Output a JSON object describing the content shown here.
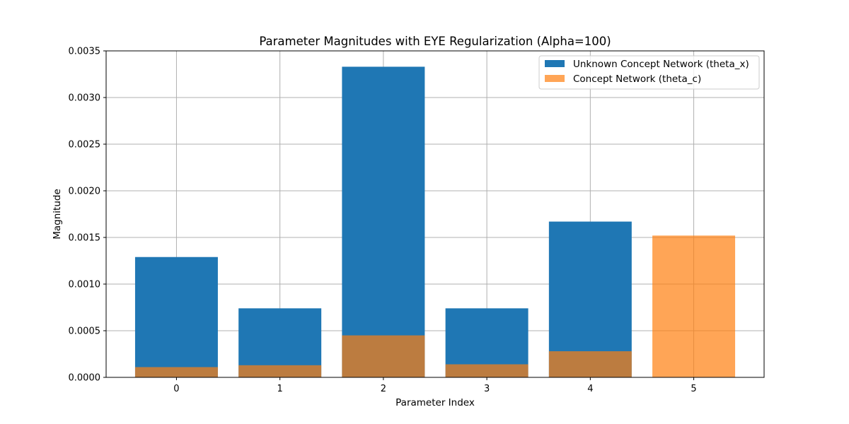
{
  "chart_data": {
    "type": "bar",
    "title": "Parameter Magnitudes with EYE Regularization (Alpha=100)",
    "xlabel": "Parameter Index",
    "ylabel": "Magnitude",
    "categories": [
      "0",
      "1",
      "2",
      "3",
      "4",
      "5"
    ],
    "ylim": [
      0,
      0.0035
    ],
    "yticks": [
      "0.0000",
      "0.0005",
      "0.0010",
      "0.0015",
      "0.0020",
      "0.0025",
      "0.0030",
      "0.0035"
    ],
    "ytick_values": [
      0,
      0.0005,
      0.001,
      0.0015,
      0.002,
      0.0025,
      0.003,
      0.0035
    ],
    "grid": true,
    "legend_position": "top-right",
    "series": [
      {
        "name": "Unknown Concept Network (theta_x)",
        "color": "#1f77b4",
        "opacity": 1,
        "values": [
          0.00129,
          0.00074,
          0.00333,
          0.00074,
          0.00167,
          0.0
        ]
      },
      {
        "name": "Concept Network (theta_c)",
        "color": "#ff7f0e",
        "opacity": 0.7,
        "values": [
          0.00011,
          0.00013,
          0.00045,
          0.00014,
          0.00028,
          0.00152
        ]
      }
    ]
  }
}
